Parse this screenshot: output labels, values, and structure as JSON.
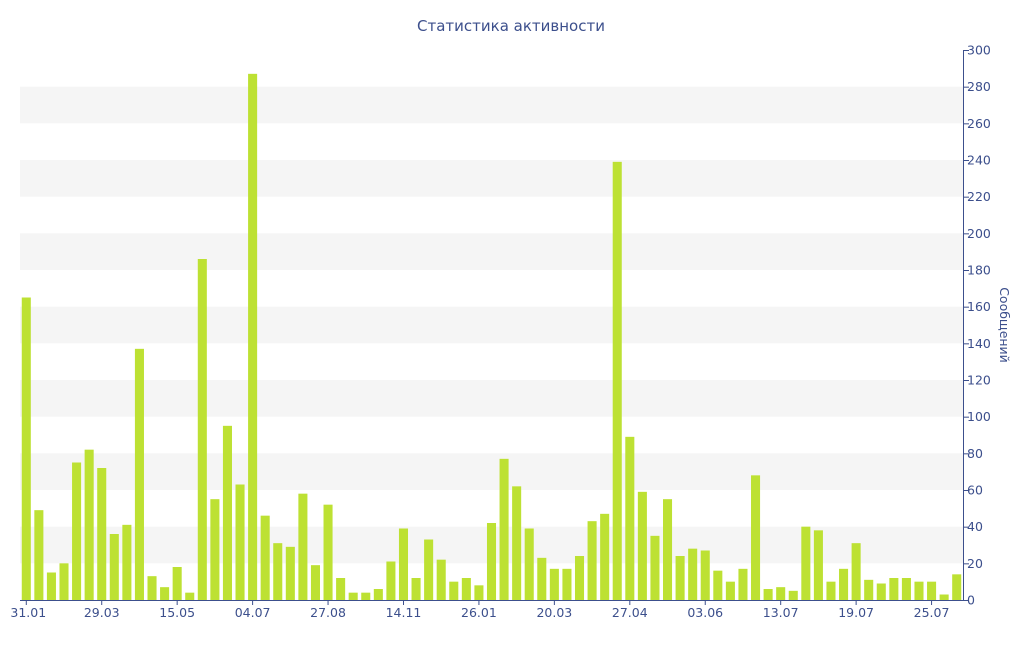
{
  "chart_data": {
    "type": "bar",
    "title": "Статистика активности",
    "xlabel": "",
    "ylabel": "Сообщений",
    "ylim": [
      0,
      300
    ],
    "y_ticks": [
      0,
      20,
      40,
      60,
      80,
      100,
      120,
      140,
      160,
      180,
      200,
      220,
      240,
      260,
      280,
      300
    ],
    "y_axis_position": "right",
    "x_tick_labels": [
      "31.01",
      "29.03",
      "15.05",
      "04.07",
      "27.08",
      "14.11",
      "26.01",
      "20.03",
      "27.04",
      "03.06",
      "13.07",
      "19.07",
      "25.07"
    ],
    "x_tick_bar_index": [
      0,
      6,
      12,
      18,
      24,
      30,
      36,
      42,
      48,
      54,
      60,
      66,
      72
    ],
    "values": [
      165,
      49,
      15,
      20,
      75,
      82,
      72,
      36,
      41,
      137,
      13,
      7,
      18,
      4,
      186,
      55,
      95,
      63,
      287,
      46,
      31,
      29,
      58,
      19,
      52,
      12,
      4,
      4,
      6,
      21,
      39,
      12,
      33,
      22,
      10,
      12,
      8,
      42,
      77,
      62,
      39,
      23,
      17,
      17,
      24,
      43,
      47,
      239,
      89,
      59,
      35,
      55,
      24,
      28,
      27,
      16,
      10,
      17,
      68,
      6,
      7,
      5,
      40,
      38,
      10,
      17,
      31,
      11,
      9,
      12,
      12,
      10,
      10,
      3,
      14
    ],
    "grid": "alternating-bands",
    "colors": {
      "bar": "#bde133",
      "band": "#f5f5f5",
      "text": "#3c4f8c"
    }
  }
}
